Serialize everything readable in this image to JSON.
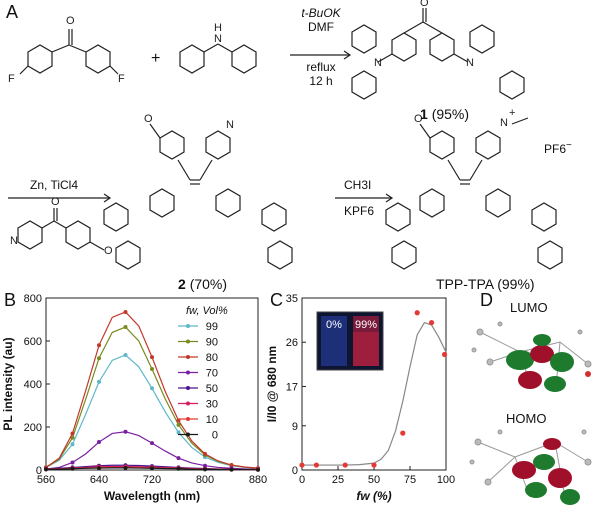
{
  "panels": {
    "a": "A",
    "b": "B",
    "c": "C",
    "d": "D"
  },
  "scheme": {
    "plus": "+",
    "step1": {
      "line1": "t-BuOK",
      "line2": "DMF",
      "line3": "reflux",
      "line4": "12 h"
    },
    "step2": {
      "line1": "Zn, TiCl4"
    },
    "step3": {
      "line1": "CH3I",
      "line2": "KPF6"
    },
    "compound1": {
      "num": "1",
      "yield": "(95%)"
    },
    "compound2": {
      "num": "2",
      "yield": "(70%)"
    },
    "product": {
      "name": "TPP-TPA",
      "yield": "(99%)"
    },
    "atoms": {
      "O": "O",
      "F": "F",
      "N": "N",
      "H": "H",
      "plus": "+",
      "pf6": "PF6",
      "methyl": "—"
    }
  },
  "chart_data": [
    {
      "type": "line",
      "panel": "B",
      "xlabel": "Wavelength (nm)",
      "ylabel": "PL intensity (au)",
      "xlim": [
        560,
        880
      ],
      "ylim": [
        0,
        800
      ],
      "xticks": [
        560,
        640,
        720,
        800,
        880
      ],
      "yticks": [
        0,
        200,
        400,
        600,
        800
      ],
      "legend_title": "fw, Vol%",
      "legend_position": "top-right",
      "x": [
        560,
        580,
        600,
        620,
        640,
        660,
        680,
        700,
        720,
        740,
        760,
        780,
        800,
        820,
        840,
        860,
        880
      ],
      "series": [
        {
          "name": "99",
          "color": "#5fb8c9",
          "values": [
            12,
            45,
            120,
            260,
            410,
            510,
            535,
            480,
            380,
            270,
            175,
            105,
            60,
            35,
            20,
            12,
            8
          ]
        },
        {
          "name": "90",
          "color": "#7a8a1e",
          "values": [
            12,
            50,
            150,
            330,
            520,
            640,
            665,
            600,
            470,
            330,
            210,
            125,
            70,
            40,
            22,
            13,
            8
          ]
        },
        {
          "name": "80",
          "color": "#c0392b",
          "values": [
            12,
            55,
            170,
            370,
            580,
            710,
            735,
            670,
            525,
            365,
            230,
            135,
            75,
            42,
            23,
            14,
            9
          ]
        },
        {
          "name": "70",
          "color": "#7b1fa2",
          "values": [
            5,
            12,
            35,
            75,
            130,
            170,
            178,
            160,
            125,
            88,
            55,
            33,
            20,
            12,
            8,
            5,
            3
          ]
        },
        {
          "name": "50",
          "color": "#4a148c",
          "values": [
            5,
            8,
            12,
            16,
            20,
            22,
            22,
            21,
            18,
            15,
            12,
            9,
            7,
            5,
            4,
            3,
            2
          ]
        },
        {
          "name": "30",
          "color": "#d81b60",
          "values": [
            4,
            6,
            9,
            12,
            15,
            16,
            16,
            15,
            13,
            11,
            9,
            7,
            5,
            4,
            3,
            2,
            2
          ]
        },
        {
          "name": "10",
          "color": "#e53935",
          "values": [
            3,
            5,
            7,
            9,
            11,
            12,
            12,
            11,
            10,
            8,
            7,
            5,
            4,
            3,
            2,
            2,
            1
          ]
        },
        {
          "name": "0",
          "color": "#1a1a1a",
          "values": [
            3,
            4,
            6,
            8,
            9,
            10,
            10,
            9,
            8,
            7,
            6,
            4,
            3,
            3,
            2,
            2,
            1
          ]
        }
      ]
    },
    {
      "type": "scatter",
      "panel": "C",
      "xlabel": "fw (%)",
      "ylabel": "I/I0 @ 680 nm",
      "xlim": [
        0,
        100
      ],
      "ylim": [
        0,
        35
      ],
      "xticks": [
        0,
        25,
        50,
        75,
        100
      ],
      "yticks": [
        0,
        9,
        17,
        26,
        35
      ],
      "inset_labels": [
        "0%",
        "99%"
      ],
      "points": {
        "x": [
          0,
          10,
          30,
          50,
          70,
          80,
          90,
          99
        ],
        "y": [
          1,
          1,
          1,
          1,
          7.5,
          32,
          30,
          23.5
        ]
      },
      "fit": {
        "x": [
          0,
          10,
          20,
          30,
          40,
          50,
          55,
          60,
          65,
          70,
          75,
          80,
          85,
          90,
          95,
          100
        ],
        "y": [
          1,
          1,
          1,
          1,
          1.1,
          1.4,
          2.2,
          4,
          8,
          14,
          21,
          27.5,
          30,
          29.5,
          27,
          24
        ]
      }
    }
  ],
  "orbitals": {
    "top": "LUMO",
    "bottom": "HOMO"
  }
}
